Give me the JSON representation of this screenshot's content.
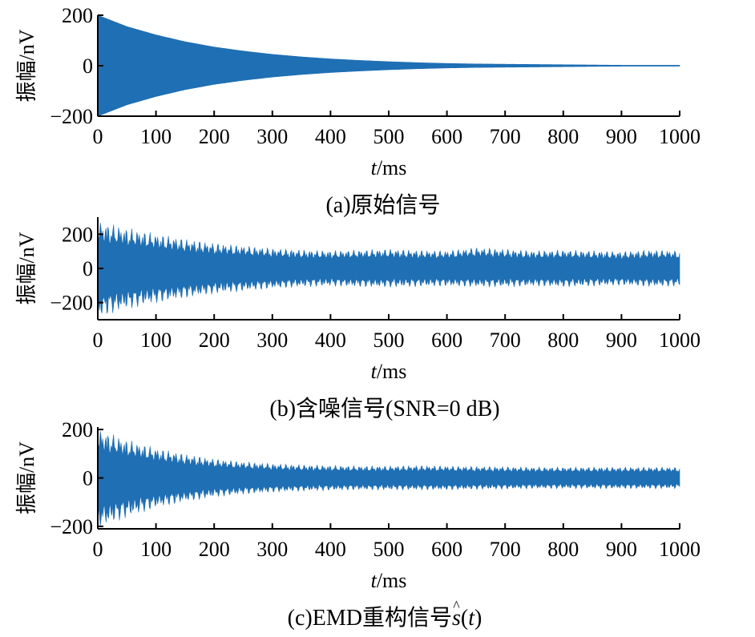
{
  "chart_data": [
    {
      "type": "line",
      "caption": "(a)原始信号",
      "xlabel_italic": "t",
      "xlabel_rest": "/ms",
      "ylabel": "振幅/nV",
      "xlim": [
        0,
        1000
      ],
      "ylim": [
        -200,
        200
      ],
      "xticks": [
        0,
        100,
        200,
        300,
        400,
        500,
        600,
        700,
        800,
        900,
        1000
      ],
      "xtick_labels": [
        "0",
        "100",
        "200",
        "300",
        "400",
        "500",
        "600",
        "700",
        "800",
        "900",
        "1000"
      ],
      "yticks": [
        200,
        0,
        -200
      ],
      "ytick_labels": [
        "200",
        "0",
        "−200"
      ],
      "color": "#1f6fb4",
      "series": [
        {
          "x": [
            0,
            50,
            100,
            150,
            200,
            250,
            300,
            350,
            400,
            450,
            500,
            550,
            600,
            650,
            700,
            750,
            800,
            850,
            900,
            950,
            1000
          ],
          "upper": [
            200,
            155,
            122,
            95,
            74,
            58,
            45,
            35,
            27,
            21,
            16,
            12,
            9,
            7,
            6,
            5,
            4,
            3,
            2,
            2,
            2
          ],
          "lower": [
            -200,
            -155,
            -122,
            -95,
            -74,
            -58,
            -45,
            -35,
            -27,
            -21,
            -16,
            -12,
            -9,
            -7,
            -6,
            -5,
            -4,
            -3,
            -2,
            -2,
            -2
          ]
        }
      ]
    },
    {
      "type": "line",
      "caption": "(b)含噪信号(SNR=0 dB)",
      "xlabel_italic": "t",
      "xlabel_rest": "/ms",
      "ylabel": "振幅/nV",
      "xlim": [
        0,
        1000
      ],
      "ylim": [
        -300,
        300
      ],
      "xticks": [
        0,
        100,
        200,
        300,
        400,
        500,
        600,
        700,
        800,
        900,
        1000
      ],
      "xtick_labels": [
        "0",
        "100",
        "200",
        "300",
        "400",
        "500",
        "600",
        "700",
        "800",
        "900",
        "1000"
      ],
      "yticks": [
        200,
        0,
        -200
      ],
      "ytick_labels": [
        "200",
        "0",
        "−200"
      ],
      "color": "#1f6fb4",
      "series": [
        {
          "x": [
            0,
            50,
            100,
            150,
            200,
            250,
            300,
            350,
            400,
            450,
            500,
            550,
            600,
            650,
            700,
            750,
            800,
            850,
            900,
            950,
            1000
          ],
          "upper": [
            280,
            240,
            205,
            175,
            150,
            135,
            120,
            110,
            105,
            110,
            115,
            108,
            105,
            125,
            115,
            105,
            110,
            105,
            100,
            110,
            105
          ],
          "lower": [
            -290,
            -240,
            -205,
            -175,
            -150,
            -135,
            -120,
            -110,
            -105,
            -110,
            -112,
            -108,
            -105,
            -110,
            -110,
            -105,
            -110,
            -105,
            -100,
            -108,
            -105
          ]
        }
      ]
    },
    {
      "type": "line",
      "caption_prefix": "(c)EMD重构信号",
      "caption_symbol": "s",
      "caption_hat": "^",
      "caption_open": "(",
      "caption_arg": "t",
      "caption_close": ")",
      "xlabel_italic": "t",
      "xlabel_rest": "/ms",
      "ylabel": "振幅/nV",
      "xlim": [
        0,
        1000
      ],
      "ylim": [
        -210,
        210
      ],
      "xticks": [
        0,
        100,
        200,
        300,
        400,
        500,
        600,
        700,
        800,
        900,
        1000
      ],
      "xtick_labels": [
        "0",
        "100",
        "200",
        "300",
        "400",
        "500",
        "600",
        "700",
        "800",
        "900",
        "1000"
      ],
      "yticks": [
        200,
        0,
        -200
      ],
      "ytick_labels": [
        "200",
        "0",
        "−200"
      ],
      "color": "#1f6fb4",
      "series": [
        {
          "x": [
            0,
            50,
            100,
            150,
            200,
            250,
            300,
            350,
            400,
            450,
            500,
            550,
            600,
            650,
            700,
            750,
            800,
            850,
            900,
            950,
            1000
          ],
          "upper": [
            205,
            160,
            125,
            100,
            80,
            68,
            60,
            55,
            52,
            50,
            50,
            52,
            50,
            48,
            47,
            45,
            45,
            45,
            45,
            45,
            45
          ],
          "lower": [
            -210,
            -165,
            -125,
            -100,
            -80,
            -68,
            -60,
            -55,
            -52,
            -50,
            -50,
            -50,
            -50,
            -48,
            -47,
            -45,
            -45,
            -45,
            -45,
            -45,
            -45
          ]
        }
      ]
    }
  ]
}
